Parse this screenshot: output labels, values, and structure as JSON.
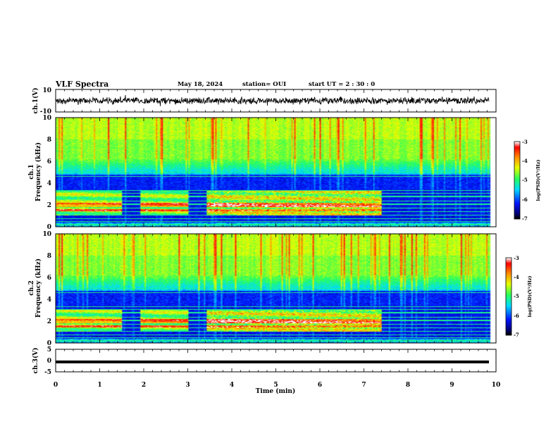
{
  "header": {
    "title": "VLF Spectra",
    "date": "May 18, 2024",
    "station": "station= OUI",
    "start": "start  UT =   2 : 30 : 0"
  },
  "chart_data": [
    {
      "type": "line",
      "title": "",
      "ylabel": "ch.1(V)",
      "xlabel": "",
      "xlim": [
        0,
        10
      ],
      "ylim": [
        -10,
        10
      ],
      "ytick_labels": [
        "10",
        "-10"
      ],
      "series": [
        {
          "x": [
            0,
            9.84
          ],
          "y_range": [
            -4,
            4
          ],
          "mean": 0
        }
      ]
    },
    {
      "type": "heatmap",
      "title": "",
      "channel_label": "ch.1",
      "ylabel": "Frequency  (kHz)",
      "xlim": [
        0,
        10
      ],
      "ylim": [
        0,
        10
      ],
      "ytick_labels": [
        "0",
        "2",
        "4",
        "6",
        "8",
        "10"
      ],
      "data_end_min": 9.84,
      "colorbar": {
        "label": "log(PSD)(V²/Hz)",
        "range": [
          -7,
          -3
        ],
        "tick_labels": [
          "-3",
          "-4",
          "-5",
          "-6",
          "-7"
        ]
      },
      "elevated_band_khz": [
        1,
        3.3
      ],
      "elevated_band_intervals_min": [
        [
          0,
          1.5
        ],
        [
          1.9,
          3.0
        ],
        [
          3.4,
          7.4
        ]
      ]
    },
    {
      "type": "heatmap",
      "title": "",
      "channel_label": "ch.2",
      "ylabel": "Frequency  (kHz)",
      "xlim": [
        0,
        10
      ],
      "ylim": [
        0,
        10
      ],
      "ytick_labels": [
        "0",
        "2",
        "4",
        "6",
        "8",
        "10"
      ],
      "data_end_min": 9.84,
      "colorbar": {
        "label": "log(PSD)(V²/Hz)",
        "range": [
          -7,
          -3
        ],
        "tick_labels": [
          "-3",
          "-4",
          "-5",
          "-6",
          "-7"
        ]
      },
      "elevated_band_khz": [
        1,
        3.0
      ],
      "elevated_band_intervals_min": [
        [
          0,
          1.5
        ],
        [
          1.9,
          3.0
        ],
        [
          3.4,
          7.4
        ]
      ]
    },
    {
      "type": "line",
      "title": "",
      "ylabel": "ch.3(V)",
      "xlabel": "Time  (min)",
      "xlim": [
        0,
        10
      ],
      "ylim": [
        -5,
        5
      ],
      "ytick_labels": [
        "5",
        "0",
        "-5"
      ],
      "xtick_labels": [
        "0",
        "1",
        "2",
        "3",
        "4",
        "5",
        "6",
        "7",
        "8",
        "9",
        "10"
      ],
      "series": [
        {
          "x": [
            0,
            9.84
          ],
          "y": [
            -0.6,
            -0.6
          ]
        }
      ]
    }
  ],
  "colors": {
    "waveform": "#000000",
    "colormap": [
      "#000000",
      "#000080",
      "#0000ff",
      "#00ffff",
      "#00ff00",
      "#ffff00",
      "#ff8000",
      "#ff0000",
      "#ffffff"
    ]
  }
}
